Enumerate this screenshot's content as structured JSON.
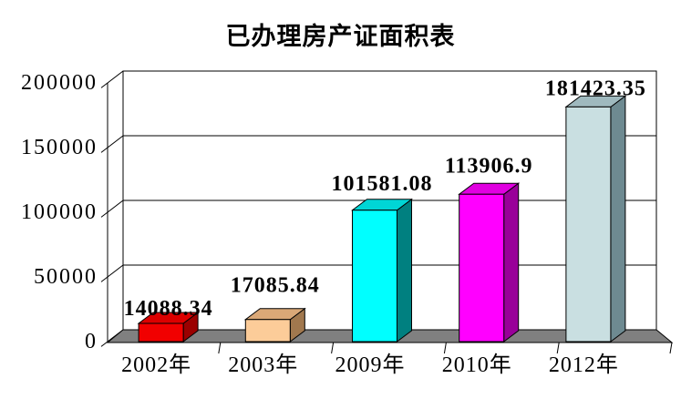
{
  "title": "已办理房产证面积表",
  "chart_data": {
    "type": "bar",
    "style": "3d-column",
    "title": "已办理房产证面积表",
    "categories": [
      "2002年",
      "2003年",
      "2009年",
      "2010年",
      "2012年"
    ],
    "values": [
      14088.34,
      17085.84,
      101581.08,
      113906.9,
      181423.35
    ],
    "value_labels": [
      "14088.34",
      "17085.84",
      "101581.08",
      "113906.9",
      "181423.35"
    ],
    "yticks": [
      0,
      50000,
      100000,
      150000,
      200000
    ],
    "ytick_labels": [
      "0",
      "50000",
      "100000",
      "150000",
      "200000"
    ],
    "ylim": [
      0,
      200000
    ],
    "xlabel": "",
    "ylabel": "",
    "grid": true,
    "legend": false,
    "bar_colors": [
      {
        "name": "red",
        "front": "#F10000",
        "top": "#DC0000",
        "side": "#9B0000"
      },
      {
        "name": "tan",
        "front": "#FCCC99",
        "top": "#DAA877",
        "side": "#A1784E"
      },
      {
        "name": "cyan",
        "front": "#00FFFF",
        "top": "#00D6D6",
        "side": "#008080"
      },
      {
        "name": "magenta",
        "front": "#FF00FF",
        "top": "#E000E0",
        "side": "#990099"
      },
      {
        "name": "light-blue",
        "front": "#C9DFE1",
        "top": "#9FB9BE",
        "side": "#6E8A91"
      }
    ],
    "floor_color": "#808080",
    "wall_color": "#FFFFFF",
    "outline_color": "#000000",
    "background": "#FFFFFF"
  }
}
